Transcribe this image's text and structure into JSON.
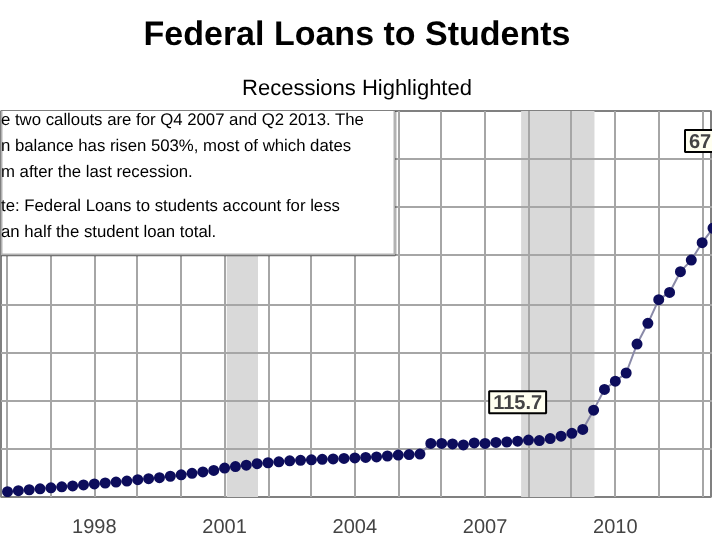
{
  "chart_data": {
    "type": "line",
    "title": "Federal Loans to Students",
    "subtitle": "Recessions Highlighted",
    "x": [
      1996.0,
      1996.25,
      1996.5,
      1996.75,
      1997.0,
      1997.25,
      1997.5,
      1997.75,
      1998.0,
      1998.25,
      1998.5,
      1998.75,
      1999.0,
      1999.25,
      1999.5,
      1999.75,
      2000.0,
      2000.25,
      2000.5,
      2000.75,
      2001.0,
      2001.25,
      2001.5,
      2001.75,
      2002.0,
      2002.25,
      2002.5,
      2002.75,
      2003.0,
      2003.25,
      2003.5,
      2003.75,
      2004.0,
      2004.25,
      2004.5,
      2004.75,
      2005.0,
      2005.25,
      2005.5,
      2005.75,
      2006.0,
      2006.25,
      2006.5,
      2006.75,
      2007.0,
      2007.25,
      2007.5,
      2007.75,
      2008.0,
      2008.25,
      2008.5,
      2008.75,
      2009.0,
      2009.25,
      2009.5,
      2009.75,
      2010.0,
      2010.25,
      2010.5,
      2010.75,
      2011.0,
      2011.25,
      2011.5,
      2011.75,
      2012.0,
      2012.25
    ],
    "series": [
      {
        "color": "#0d0d5c",
        "values": [
          11,
          13,
          15,
          17,
          19,
          21,
          23,
          25,
          27,
          29,
          31,
          33,
          36,
          38,
          40,
          43,
          46,
          49,
          52,
          55,
          60,
          63,
          66,
          69,
          71,
          73,
          75,
          76,
          77,
          78,
          79,
          80,
          81,
          82,
          83,
          85,
          87,
          88,
          89,
          111,
          111,
          110,
          108,
          112,
          111,
          113,
          114,
          115.7,
          118,
          117,
          121,
          126,
          132,
          140,
          180,
          223,
          240,
          257,
          317,
          360,
          409,
          424,
          467,
          491,
          527,
          557
        ],
        "value_labels": [
          null,
          null,
          null,
          null,
          null,
          null,
          null,
          null,
          null,
          null,
          null,
          null,
          null,
          null,
          null,
          null,
          null,
          null,
          null,
          null,
          null,
          null,
          null,
          null,
          null,
          null,
          null,
          null,
          null,
          null,
          null,
          null,
          null,
          null,
          null,
          null,
          null,
          null,
          null,
          null,
          null,
          null,
          null,
          null,
          null,
          null,
          null,
          "115.7",
          null,
          null,
          null,
          null,
          null,
          null,
          null,
          null,
          null,
          null,
          null,
          null,
          null,
          null,
          null,
          null,
          null,
          null
        ]
      }
    ],
    "marker": "circle",
    "line_style": "solid",
    "grid": true,
    "tick_labels": "x",
    "xlim": [
      1995.85,
      2012.25
    ],
    "xticks": [
      {
        "value": 1996,
        "label": null
      },
      {
        "value": 1997,
        "label": null
      },
      1998,
      {
        "value": 1999,
        "label": null
      },
      {
        "value": 2000,
        "label": null
      },
      2001,
      {
        "value": 2002,
        "label": null
      },
      {
        "value": 2003,
        "label": null
      },
      2004,
      {
        "value": 2005,
        "label": null
      },
      {
        "value": 2006,
        "label": null
      },
      2007,
      {
        "value": 2008,
        "label": null
      },
      {
        "value": 2009,
        "label": null
      },
      2010,
      {
        "value": 2011,
        "label": null
      },
      {
        "value": 2012,
        "label": null
      }
    ],
    "ylim": [
      0,
      800
    ],
    "yticks": [
      {
        "value": 100,
        "label": null
      },
      {
        "value": 200,
        "label": null
      },
      {
        "value": 300,
        "label": null
      },
      {
        "value": 400,
        "label": null
      },
      {
        "value": 500,
        "label": null
      },
      {
        "value": 600,
        "label": null
      },
      {
        "value": 700,
        "label": null
      }
    ],
    "bands": [
      {
        "axis": "x",
        "from": 2001.05,
        "to": 2001.77,
        "color": "#d9d9d9"
      },
      {
        "axis": "x",
        "from": 2007.83,
        "to": 2009.52,
        "color": "#d9d9d9"
      }
    ],
    "annotations": [
      "e two callouts are for Q4 2007 and Q2 2013. The\nn balance has risen 503%, most of which dates\nm after the last recession.",
      "te: Federal Loans to students account for less\nan half the student loan total.",
      "67"
    ]
  }
}
